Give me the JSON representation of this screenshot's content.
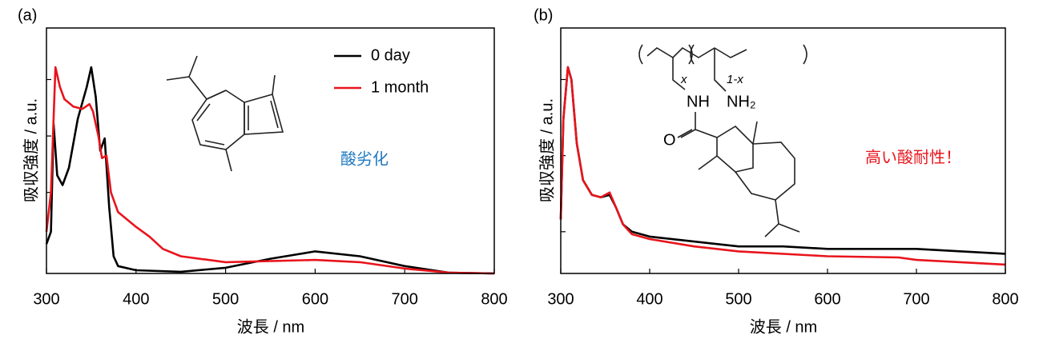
{
  "chart_data": [
    {
      "type": "line",
      "panel_label": "(a)",
      "x_label": "波長 / nm",
      "y_label": "吸収強度 / a.u.",
      "annotations": [
        "酸劣化"
      ],
      "xlim": [
        300,
        800
      ],
      "xticks": [
        300,
        400,
        500,
        600,
        700,
        800
      ],
      "ylim": [
        0,
        1
      ],
      "yticks": [
        0.33,
        0.56,
        0.79
      ],
      "legend": "upper right",
      "series": [
        {
          "name": "0 day",
          "color": "#000000",
          "x": [
            300,
            305,
            308,
            312,
            318,
            325,
            335,
            345,
            350,
            355,
            360,
            365,
            370,
            375,
            380,
            400,
            450,
            500,
            550,
            600,
            650,
            700,
            750,
            800
          ],
          "values": [
            0.12,
            0.17,
            0.61,
            0.4,
            0.36,
            0.43,
            0.63,
            0.76,
            0.84,
            0.72,
            0.5,
            0.55,
            0.27,
            0.07,
            0.03,
            0.013,
            0.007,
            0.023,
            0.06,
            0.09,
            0.07,
            0.03,
            0.003,
            0
          ]
        },
        {
          "name": "1 month",
          "color": "#e8141c",
          "x": [
            300,
            305,
            310,
            315,
            320,
            330,
            340,
            348,
            352,
            358,
            362,
            367,
            372,
            380,
            400,
            415,
            430,
            450,
            500,
            600,
            650,
            700,
            750,
            800
          ],
          "values": [
            0.17,
            0.33,
            0.84,
            0.76,
            0.71,
            0.68,
            0.67,
            0.69,
            0.66,
            0.56,
            0.47,
            0.48,
            0.33,
            0.25,
            0.19,
            0.15,
            0.1,
            0.07,
            0.046,
            0.055,
            0.046,
            0.02,
            0.003,
            0
          ]
        }
      ]
    },
    {
      "type": "line",
      "panel_label": "(b)",
      "x_label": "波長 / nm",
      "y_label": "吸収強度 / a.u.",
      "annotations": [
        "高い酸耐性！"
      ],
      "structure_labels": [
        "x",
        "1-x",
        "NH",
        "NH₂",
        "O"
      ],
      "xlim": [
        300,
        800
      ],
      "xticks": [
        300,
        400,
        500,
        600,
        700,
        800
      ],
      "ylim": [
        0,
        1
      ],
      "yticks": [
        0.17,
        0.48,
        0.79
      ],
      "series": [
        {
          "color": "#000000",
          "x": [
            300,
            303,
            308,
            312,
            318,
            325,
            335,
            345,
            355,
            362,
            370,
            380,
            400,
            450,
            500,
            550,
            600,
            700,
            800
          ],
          "values": [
            0.22,
            0.63,
            0.84,
            0.79,
            0.53,
            0.38,
            0.32,
            0.31,
            0.32,
            0.27,
            0.2,
            0.17,
            0.15,
            0.13,
            0.11,
            0.11,
            0.1,
            0.1,
            0.08
          ]
        },
        {
          "color": "#e8141c",
          "x": [
            300,
            303,
            308,
            312,
            318,
            325,
            335,
            345,
            355,
            362,
            370,
            380,
            400,
            450,
            500,
            600,
            680,
            700,
            800
          ],
          "values": [
            0.22,
            0.63,
            0.84,
            0.79,
            0.53,
            0.38,
            0.32,
            0.31,
            0.33,
            0.27,
            0.2,
            0.16,
            0.14,
            0.11,
            0.09,
            0.07,
            0.065,
            0.055,
            0.036
          ]
        }
      ]
    }
  ]
}
